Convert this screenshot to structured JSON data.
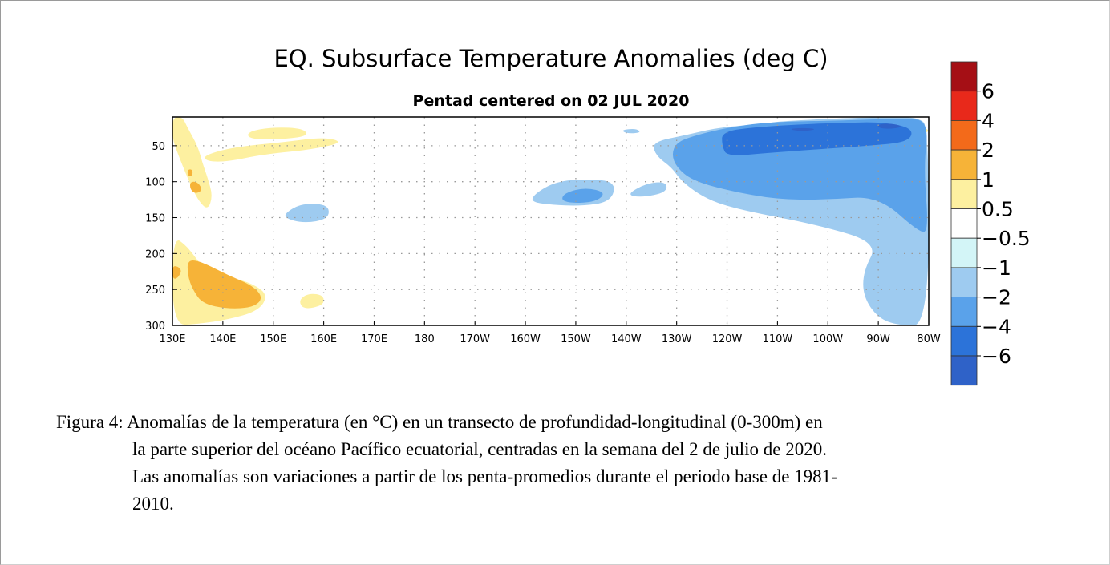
{
  "chart_data": {
    "type": "heatmap",
    "title": "EQ. Subsurface Temperature Anomalies (deg C)",
    "subtitle": "Pentad centered on 02 JUL 2020",
    "xlim": [
      130,
      280
    ],
    "ylim": [
      300,
      10
    ],
    "x_ticks": [
      {
        "value": 130,
        "label": "130E"
      },
      {
        "value": 140,
        "label": "140E"
      },
      {
        "value": 150,
        "label": "150E"
      },
      {
        "value": 160,
        "label": "160E"
      },
      {
        "value": 170,
        "label": "170E"
      },
      {
        "value": 180,
        "label": "180"
      },
      {
        "value": 190,
        "label": "170W"
      },
      {
        "value": 200,
        "label": "160W"
      },
      {
        "value": 210,
        "label": "150W"
      },
      {
        "value": 220,
        "label": "140W"
      },
      {
        "value": 230,
        "label": "130W"
      },
      {
        "value": 240,
        "label": "120W"
      },
      {
        "value": 250,
        "label": "110W"
      },
      {
        "value": 260,
        "label": "100W"
      },
      {
        "value": 270,
        "label": "90W"
      },
      {
        "value": 280,
        "label": "80W"
      }
    ],
    "y_ticks": [
      {
        "value": 50,
        "label": "50"
      },
      {
        "value": 100,
        "label": "100"
      },
      {
        "value": 150,
        "label": "150"
      },
      {
        "value": 200,
        "label": "200"
      },
      {
        "value": 250,
        "label": "250"
      },
      {
        "value": 300,
        "label": "300"
      }
    ],
    "grid": true,
    "colorbar": {
      "bins": [
        {
          "color": "#a50f15"
        },
        {
          "color": "#e8291b"
        },
        {
          "color": "#f36a1a"
        },
        {
          "color": "#f6b338"
        },
        {
          "color": "#fdf0a0"
        },
        {
          "color": "#ffffff"
        },
        {
          "color": "#d3f5f7"
        },
        {
          "color": "#9ecbf0"
        },
        {
          "color": "#5aa2ea"
        },
        {
          "color": "#2c73d9"
        },
        {
          "color": "#2f62c8"
        }
      ],
      "labels": [
        "6",
        "4",
        "2",
        "1",
        "0.5",
        "−0.5",
        "−1",
        "−2",
        "−4",
        "−6"
      ]
    },
    "regions": [
      {
        "level": 0.5,
        "points": [
          [
            130,
            10
          ],
          [
            132,
            10
          ],
          [
            133,
            25
          ],
          [
            135,
            50
          ],
          [
            136,
            75
          ],
          [
            137,
            95
          ],
          [
            138,
            120
          ],
          [
            137,
            140
          ],
          [
            135,
            125
          ],
          [
            133,
            95
          ],
          [
            131,
            60
          ],
          [
            130,
            40
          ]
        ]
      },
      {
        "level": 0.5,
        "points": [
          [
            136,
            64
          ],
          [
            142,
            52
          ],
          [
            152,
            45
          ],
          [
            160,
            38
          ],
          [
            164,
            45
          ],
          [
            158,
            55
          ],
          [
            148,
            62
          ],
          [
            141,
            72
          ],
          [
            137,
            72
          ]
        ]
      },
      {
        "level": 0.5,
        "points": [
          [
            145,
            30
          ],
          [
            150,
            24
          ],
          [
            156,
            26
          ],
          [
            157,
            37
          ],
          [
            150,
            42
          ],
          [
            145,
            40
          ]
        ]
      },
      {
        "level": 0.5,
        "points": [
          [
            130,
            300
          ],
          [
            130,
            175
          ],
          [
            133,
            190
          ],
          [
            136,
            220
          ],
          [
            141,
            232
          ],
          [
            146,
            242
          ],
          [
            149,
            258
          ],
          [
            147,
            280
          ],
          [
            141,
            292
          ],
          [
            135,
            298
          ]
        ]
      },
      {
        "level": 0.5,
        "points": [
          [
            155,
            265
          ],
          [
            157,
            255
          ],
          [
            160,
            258
          ],
          [
            160,
            272
          ],
          [
            156,
            278
          ]
        ]
      },
      {
        "level": 0.5,
        "points": [
          [
            279.5,
            26
          ],
          [
            280,
            29
          ],
          [
            279.5,
            32
          ],
          [
            279,
            29
          ]
        ]
      },
      {
        "level": 1,
        "points": [
          [
            133,
            208
          ],
          [
            136,
            212
          ],
          [
            141,
            230
          ],
          [
            146,
            245
          ],
          [
            148,
            262
          ],
          [
            146,
            275
          ],
          [
            141,
            277
          ],
          [
            136,
            270
          ],
          [
            134,
            250
          ],
          [
            133,
            230
          ]
        ]
      },
      {
        "level": 1,
        "points": [
          [
            130,
            215
          ],
          [
            132,
            222
          ],
          [
            131,
            235
          ],
          [
            130,
            235
          ]
        ]
      },
      {
        "level": 1,
        "points": [
          [
            133.5,
            100
          ],
          [
            135,
            100
          ],
          [
            136,
            112
          ],
          [
            134.5,
            117
          ],
          [
            133.5,
            110
          ]
        ]
      },
      {
        "level": 1,
        "points": [
          [
            133,
            83
          ],
          [
            134,
            83
          ],
          [
            134,
            92
          ],
          [
            133,
            92
          ]
        ]
      },
      {
        "level": -1,
        "points": [
          [
            225,
            45
          ],
          [
            232,
            35
          ],
          [
            238,
            25
          ],
          [
            246,
            20
          ],
          [
            252,
            15
          ],
          [
            270,
            10
          ],
          [
            278,
            10
          ],
          [
            280,
            25
          ],
          [
            280,
            300
          ],
          [
            274,
            300
          ],
          [
            270,
            290
          ],
          [
            267,
            260
          ],
          [
            267,
            225
          ],
          [
            270,
            185
          ],
          [
            258,
            160
          ],
          [
            243,
            140
          ],
          [
            236,
            125
          ],
          [
            231,
            100
          ],
          [
            229,
            80
          ],
          [
            226,
            65
          ]
        ]
      },
      {
        "level": -1,
        "points": [
          [
            202,
            116
          ],
          [
            206,
            100
          ],
          [
            212,
            96
          ],
          [
            218,
            100
          ],
          [
            217,
            128
          ],
          [
            211,
            134
          ],
          [
            205,
            132
          ],
          [
            201,
            128
          ]
        ]
      },
      {
        "level": -1,
        "points": [
          [
            220,
            118
          ],
          [
            224,
            102
          ],
          [
            228,
            100
          ],
          [
            228,
            115
          ],
          [
            223,
            122
          ]
        ]
      },
      {
        "level": -1,
        "points": [
          [
            153,
            140
          ],
          [
            156,
            130
          ],
          [
            161,
            132
          ],
          [
            161,
            152
          ],
          [
            156,
            158
          ],
          [
            152,
            150
          ]
        ]
      },
      {
        "level": -1,
        "points": [
          [
            219,
            28
          ],
          [
            222,
            26
          ],
          [
            223,
            32
          ],
          [
            220,
            33
          ]
        ]
      },
      {
        "level": -2,
        "points": [
          [
            230,
            45
          ],
          [
            234,
            35
          ],
          [
            240,
            25
          ],
          [
            248,
            17
          ],
          [
            262,
            15
          ],
          [
            275,
            12
          ],
          [
            280,
            15
          ],
          [
            279,
            80
          ],
          [
            280,
            170
          ],
          [
            278,
            170
          ],
          [
            270,
            120
          ],
          [
            260,
            125
          ],
          [
            250,
            125
          ],
          [
            240,
            112
          ],
          [
            233,
            98
          ],
          [
            230,
            80
          ],
          [
            229,
            62
          ]
        ]
      },
      {
        "level": -2,
        "points": [
          [
            207,
            125
          ],
          [
            208,
            115
          ],
          [
            212,
            108
          ],
          [
            216,
            115
          ],
          [
            214,
            128
          ],
          [
            209,
            130
          ]
        ]
      },
      {
        "level": -4,
        "points": [
          [
            239,
            30
          ],
          [
            246,
            24
          ],
          [
            255,
            20
          ],
          [
            263,
            18
          ],
          [
            271,
            17
          ],
          [
            277,
            26
          ],
          [
            276,
            45
          ],
          [
            268,
            50
          ],
          [
            258,
            55
          ],
          [
            248,
            60
          ],
          [
            240,
            65
          ],
          [
            239,
            50
          ]
        ]
      },
      {
        "level": -6,
        "points": [
          [
            252,
            27
          ],
          [
            255,
            25
          ],
          [
            258,
            27
          ],
          [
            255,
            30
          ]
        ]
      },
      {
        "level": -6,
        "points": [
          [
            270,
            20
          ],
          [
            273,
            19
          ],
          [
            275,
            24
          ],
          [
            272,
            27
          ],
          [
            270,
            25
          ]
        ]
      }
    ]
  },
  "caption": {
    "first_line": "Figura 4: Anomalías de la temperatura (en °C) en un transecto de profundidad-longitudinal (0-300m) en",
    "lines": [
      "la parte superior del océano Pacífico ecuatorial, centradas en la semana del 2 de julio de 2020.",
      "Las anomalías son variaciones a partir de los penta-promedios durante el periodo base de 1981-",
      "2010."
    ]
  }
}
